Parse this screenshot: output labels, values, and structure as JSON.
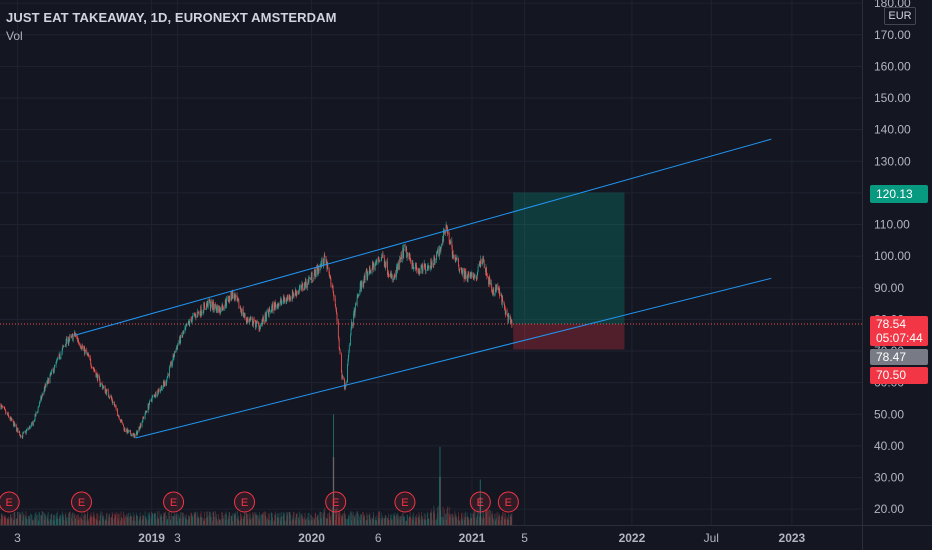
{
  "header": {
    "title": "JUST EAT TAKEAWAY, 1D, EURONEXT AMSTERDAM",
    "volume_label": "Vol",
    "currency": "EUR"
  },
  "price_tags": {
    "target": "120.13",
    "last": "78.54",
    "countdown": "05:07:44",
    "prev": "78.47",
    "stop": "70.50"
  },
  "earnings_marker": "E",
  "colors": {
    "background": "#141722",
    "grid": "#1f2330",
    "up": "#26a69a",
    "down": "#ef5350",
    "channel": "#2196f3",
    "target_zone": "#089981",
    "stop_zone": "#f23645"
  },
  "chart_data": {
    "type": "candlestick",
    "title": "JUST EAT TAKEAWAY, 1D, EURONEXT AMSTERDAM",
    "y_scale": "linear",
    "ylim": [
      15,
      181
    ],
    "y_ticks": [
      20,
      30,
      40,
      50,
      60,
      70,
      80,
      90,
      100,
      110,
      120,
      130,
      140,
      150,
      160,
      170,
      180
    ],
    "y_tick_labels": [
      "20.00",
      "30.00",
      "40.00",
      "50.00",
      "60.00",
      "70.00",
      "80.00",
      "90.00",
      "100.00",
      "110.00",
      "120.00",
      "130.00",
      "140.00",
      "150.00",
      "160.00",
      "170.00",
      "180.00"
    ],
    "x_range": [
      "2018-01-20",
      "2023-06-10"
    ],
    "x_ticks": [
      {
        "date": "2018-03-01",
        "label": "3"
      },
      {
        "date": "2019-01-01",
        "label": "2019"
      },
      {
        "date": "2019-03-01",
        "label": "3"
      },
      {
        "date": "2020-01-01",
        "label": "2020"
      },
      {
        "date": "2020-06-01",
        "label": "6"
      },
      {
        "date": "2021-01-01",
        "label": "2021"
      },
      {
        "date": "2021-05-01",
        "label": "5"
      },
      {
        "date": "2022-01-01",
        "label": "2022"
      },
      {
        "date": "2022-07-01",
        "label": "Jul"
      },
      {
        "date": "2023-01-01",
        "label": "2023"
      }
    ],
    "price_path": [
      [
        "2018-01-20",
        53
      ],
      [
        "2018-02-15",
        48
      ],
      [
        "2018-03-10",
        43
      ],
      [
        "2018-04-05",
        47
      ],
      [
        "2018-05-01",
        58
      ],
      [
        "2018-05-25",
        65
      ],
      [
        "2018-06-20",
        73
      ],
      [
        "2018-07-10",
        75
      ],
      [
        "2018-08-10",
        68
      ],
      [
        "2018-09-05",
        60
      ],
      [
        "2018-10-01",
        55
      ],
      [
        "2018-11-01",
        45
      ],
      [
        "2018-11-25",
        43
      ],
      [
        "2019-01-01",
        55
      ],
      [
        "2019-02-01",
        60
      ],
      [
        "2019-03-01",
        72
      ],
      [
        "2019-04-01",
        80
      ],
      [
        "2019-05-10",
        85
      ],
      [
        "2019-06-05",
        83
      ],
      [
        "2019-07-05",
        88
      ],
      [
        "2019-08-05",
        80
      ],
      [
        "2019-09-05",
        78
      ],
      [
        "2019-10-05",
        84
      ],
      [
        "2019-11-10",
        87
      ],
      [
        "2019-12-10",
        90
      ],
      [
        "2020-01-10",
        95
      ],
      [
        "2020-02-01",
        99
      ],
      [
        "2020-02-25",
        85
      ],
      [
        "2020-03-10",
        62
      ],
      [
        "2020-03-18",
        58
      ],
      [
        "2020-04-01",
        78
      ],
      [
        "2020-04-20",
        90
      ],
      [
        "2020-05-10",
        95
      ],
      [
        "2020-06-10",
        100
      ],
      [
        "2020-07-05",
        92
      ],
      [
        "2020-07-30",
        102
      ],
      [
        "2020-09-01",
        95
      ],
      [
        "2020-10-01",
        98
      ],
      [
        "2020-10-20",
        102
      ],
      [
        "2020-11-01",
        110
      ],
      [
        "2020-11-20",
        100
      ],
      [
        "2020-12-15",
        94
      ],
      [
        "2021-01-10",
        93
      ],
      [
        "2021-01-25",
        100
      ],
      [
        "2021-02-15",
        89
      ],
      [
        "2021-03-01",
        90
      ],
      [
        "2021-03-15",
        84
      ],
      [
        "2021-03-25",
        80
      ],
      [
        "2021-04-02",
        78.5
      ]
    ],
    "volume_peaks": [
      {
        "date": "2020-02-20",
        "relative": 0.85
      },
      {
        "date": "2020-10-20",
        "relative": 0.6
      },
      {
        "date": "2021-01-20",
        "relative": 0.35
      }
    ],
    "earnings_dates": [
      "2018-02-10",
      "2018-07-25",
      "2019-02-20",
      "2019-08-01",
      "2020-02-25",
      "2020-08-01",
      "2021-01-20",
      "2021-03-25"
    ],
    "channel_upper": [
      [
        "2018-07-10",
        75
      ],
      [
        "2022-11-15",
        137
      ]
    ],
    "channel_lower": [
      [
        "2018-11-25",
        42.5
      ],
      [
        "2022-11-15",
        93
      ]
    ],
    "position": {
      "type": "long",
      "start": "2021-04-05",
      "end": "2021-12-15",
      "entry": 78.54,
      "target": 120.13,
      "stop": 70.5
    },
    "last_price": 78.54,
    "prev_close": 78.47
  }
}
